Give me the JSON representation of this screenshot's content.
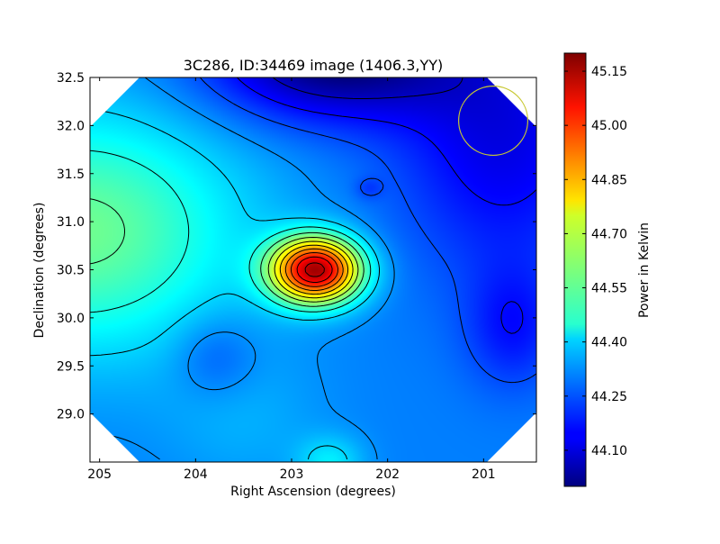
{
  "chart_data": {
    "type": "heatmap",
    "title": "3C286, ID:34469 image (1406.3,YY)",
    "xlabel": "Right Ascension (degrees)",
    "ylabel": "Declination (degrees)",
    "xlim": [
      205.1,
      200.45
    ],
    "ylim": [
      28.5,
      32.5
    ],
    "x_ticks": [
      {
        "value": 205,
        "label": "205"
      },
      {
        "value": 204,
        "label": "204"
      },
      {
        "value": 203,
        "label": "203"
      },
      {
        "value": 202,
        "label": "202"
      },
      {
        "value": 201,
        "label": "201"
      }
    ],
    "y_ticks": [
      {
        "value": 29.0,
        "label": "29.0"
      },
      {
        "value": 29.5,
        "label": "29.5"
      },
      {
        "value": 30.0,
        "label": "30.0"
      },
      {
        "value": 30.5,
        "label": "30.5"
      },
      {
        "value": 31.0,
        "label": "31.0"
      },
      {
        "value": 31.5,
        "label": "31.5"
      },
      {
        "value": 32.0,
        "label": "32.0"
      },
      {
        "value": 32.5,
        "label": "32.5"
      }
    ],
    "colorbar": {
      "label": "Power in Kelvin",
      "vmin": 44.0,
      "vmax": 45.2,
      "ticks": [
        {
          "value": 44.1,
          "label": "44.10"
        },
        {
          "value": 44.25,
          "label": "44.25"
        },
        {
          "value": 44.4,
          "label": "44.40"
        },
        {
          "value": 44.55,
          "label": "44.55"
        },
        {
          "value": 44.7,
          "label": "44.70"
        },
        {
          "value": 44.85,
          "label": "44.85"
        },
        {
          "value": 45.0,
          "label": "45.00"
        },
        {
          "value": 45.15,
          "label": "45.15"
        }
      ],
      "colormap": "jet"
    },
    "peak": {
      "ra": 202.75,
      "dec": 30.5,
      "value": 45.15
    },
    "components": [
      {
        "ra": 202.75,
        "dec": 30.5,
        "amp": 0.83,
        "sx": 0.33,
        "sy": 0.24
      },
      {
        "ra": 205.2,
        "dec": 30.9,
        "amp": 0.28,
        "sx": 1.2,
        "sy": 0.9
      },
      {
        "ra": 203.8,
        "dec": 29.6,
        "amp": -0.08,
        "sx": 0.3,
        "sy": 0.3
      },
      {
        "ra": 202.6,
        "dec": 32.7,
        "amp": -0.32,
        "sx": 0.9,
        "sy": 0.45
      },
      {
        "ra": 200.8,
        "dec": 31.9,
        "amp": -0.18,
        "sx": 0.8,
        "sy": 1.0
      },
      {
        "ra": 200.7,
        "dec": 29.9,
        "amp": -0.12,
        "sx": 0.35,
        "sy": 0.45
      },
      {
        "ra": 202.2,
        "dec": 31.35,
        "amp": -0.06,
        "sx": 0.1,
        "sy": 0.08
      },
      {
        "ra": 203.5,
        "dec": 28.9,
        "amp": 0.05,
        "sx": 0.6,
        "sy": 0.5
      },
      {
        "ra": 202.6,
        "dec": 28.5,
        "amp": 0.12,
        "sx": 0.25,
        "sy": 0.2
      }
    ],
    "background": 44.3,
    "marker_circle": {
      "ra": 200.9,
      "dec": 32.05,
      "radius_deg": 0.36,
      "color": "#c8c832"
    },
    "grid": false
  }
}
